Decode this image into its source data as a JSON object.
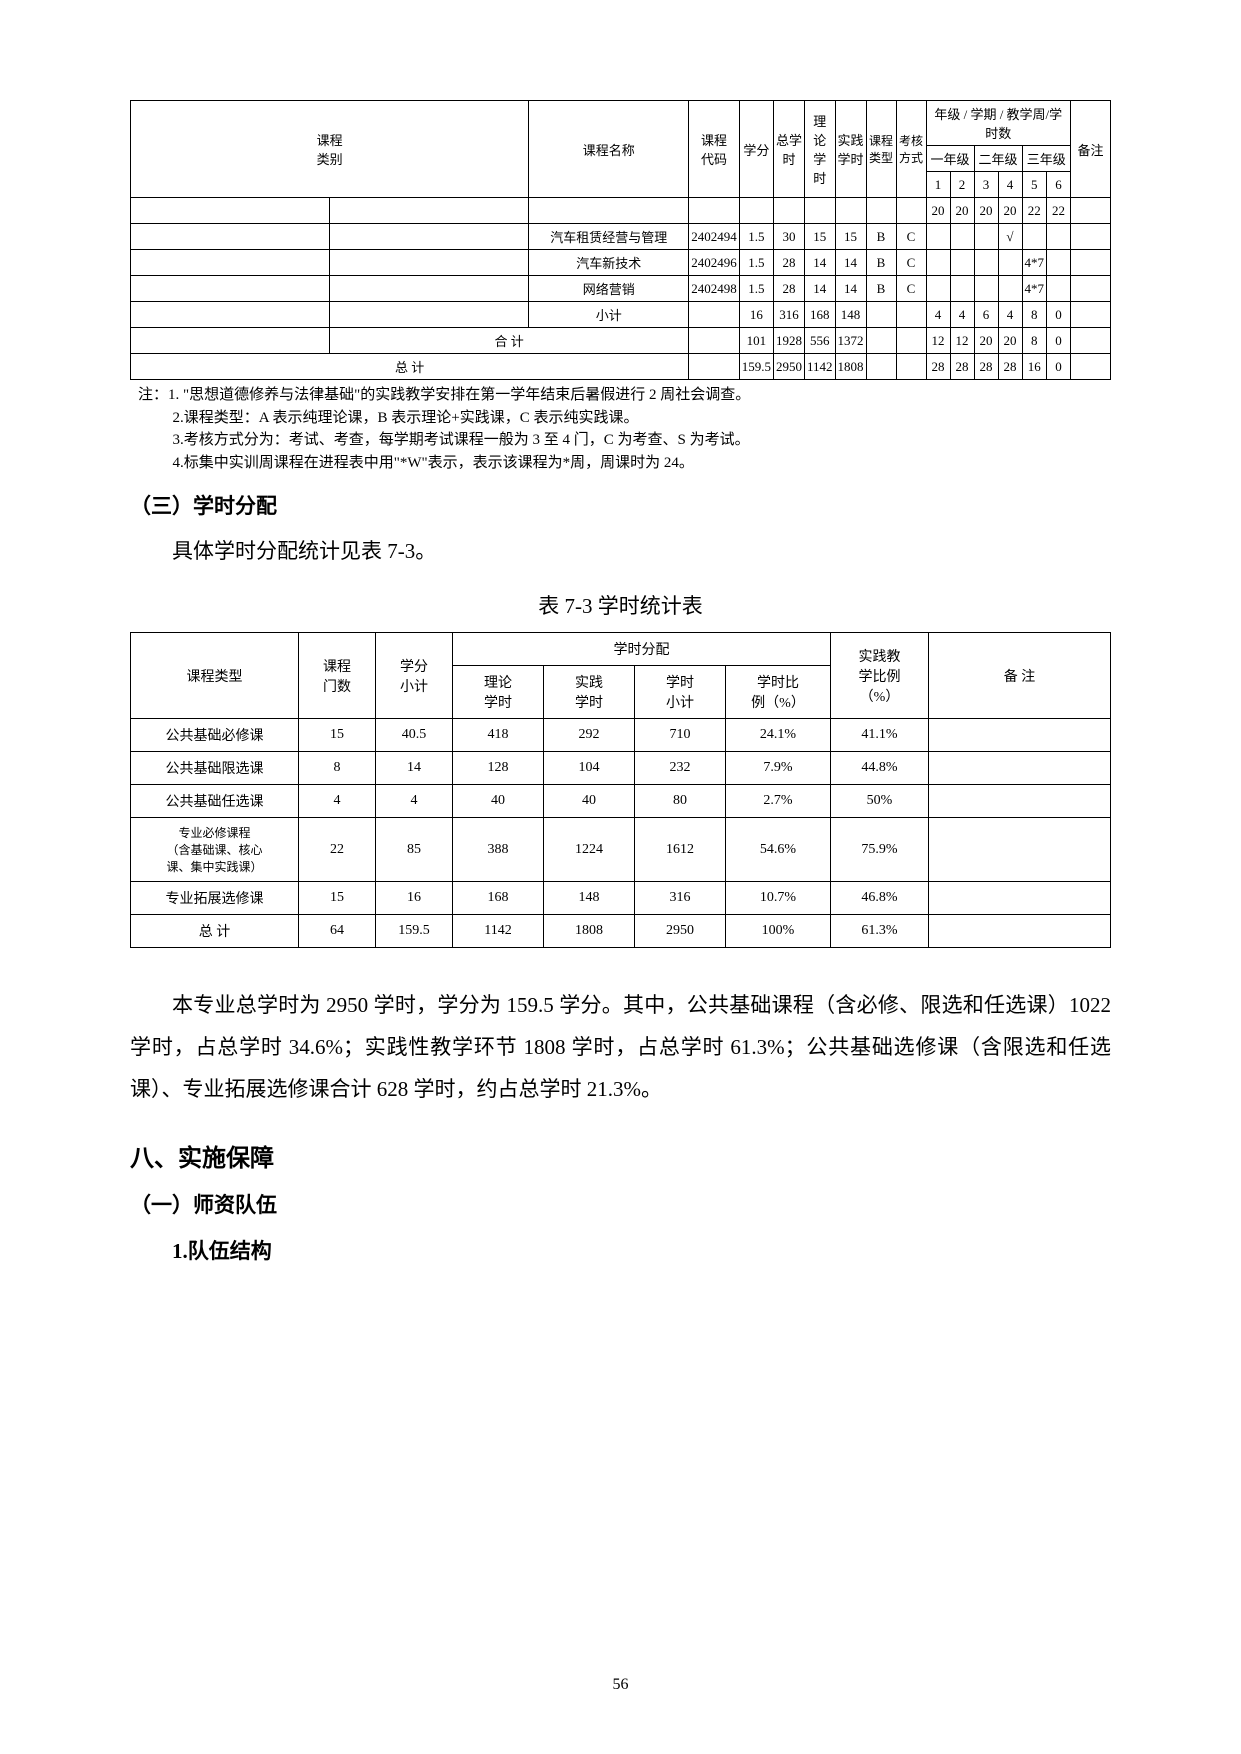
{
  "table1": {
    "header": {
      "col_category": "课程\n类别",
      "col_name": "课程名称",
      "col_code": "课程\n代码",
      "col_credit": "学分",
      "col_total": "总学\n时",
      "col_theory": "理论\n学时",
      "col_practice": "实践\n学时",
      "col_type": "课程\n类型",
      "col_assess": "考核\n方式",
      "col_years": "年级 / 学期 / 教学周/学时数",
      "col_remark": "备注",
      "y1": "一年级",
      "y2": "二年级",
      "y3": "三年级",
      "s1": "1",
      "s2": "2",
      "s3": "3",
      "s4": "4",
      "s5": "5",
      "s6": "6",
      "w1": "20",
      "w2": "20",
      "w3": "20",
      "w4": "20",
      "w5": "22",
      "w6": "22"
    },
    "rows": [
      {
        "name": "汽车租赁经营与管理",
        "code": "2402494",
        "credit": "1.5",
        "total": "30",
        "theory": "15",
        "practice": "15",
        "type": "B",
        "assess": "C",
        "v": [
          "",
          "",
          "",
          "√",
          "",
          ""
        ]
      },
      {
        "name": "汽车新技术",
        "code": "2402496",
        "credit": "1.5",
        "total": "28",
        "theory": "14",
        "practice": "14",
        "type": "B",
        "assess": "C",
        "v": [
          "",
          "",
          "",
          "",
          "4*7",
          ""
        ]
      },
      {
        "name": "网络营销",
        "code": "2402498",
        "credit": "1.5",
        "total": "28",
        "theory": "14",
        "practice": "14",
        "type": "B",
        "assess": "C",
        "v": [
          "",
          "",
          "",
          "",
          "4*7",
          ""
        ]
      }
    ],
    "subtotal": {
      "name": "小计",
      "credit": "16",
      "total": "316",
      "theory": "168",
      "practice": "148",
      "type": "",
      "assess": "",
      "v": [
        "4",
        "4",
        "6",
        "4",
        "8",
        "0"
      ]
    },
    "heji": {
      "name": "合  计",
      "credit": "101",
      "total": "1928",
      "theory": "556",
      "practice": "1372",
      "type": "",
      "assess": "",
      "v": [
        "12",
        "12",
        "20",
        "20",
        "8",
        "0"
      ]
    },
    "zongji": {
      "name": "总  计",
      "credit": "159.5",
      "total": "2950",
      "theory": "1142",
      "practice": "1808",
      "type": "",
      "assess": "",
      "v": [
        "28",
        "28",
        "28",
        "28",
        "16",
        "0"
      ]
    }
  },
  "notes": {
    "n1": "注：1. \"思想道德修养与法律基础\"的实践教学安排在第一学年结束后暑假进行 2 周社会调查。",
    "n2": "2.课程类型：A 表示纯理论课，B 表示理论+实践课，C 表示纯实践课。",
    "n3": "3.考核方式分为：考试、考查，每学期考试课程一般为 3 至 4 门，C 为考查、S 为考试。",
    "n4": "4.标集中实训周课程在进程表中用\"*W\"表示，表示该课程为*周，周课时为 24。"
  },
  "heading_3": "（三）学时分配",
  "intro_line": "具体学时分配统计见表 7-3。",
  "table2_caption": "表 7-3  学时统计表",
  "table2": {
    "h_type": "课程类型",
    "h_courses": "课程\n门数",
    "h_credit": "学分\n小计",
    "h_alloc": "学时分配",
    "h_theory": "理论\n学时",
    "h_practice": "实践\n学时",
    "h_subtotal": "学时\n小计",
    "h_ratio": "学时比\n例（%）",
    "h_pratio": "实践教\n学比例\n（%）",
    "h_remark": "备  注",
    "rows": [
      {
        "t": "公共基础必修课",
        "c": "15",
        "cr": "40.5",
        "th": "418",
        "pr": "292",
        "st": "710",
        "r": "24.1%",
        "pp": "41.1%",
        "rm": ""
      },
      {
        "t": "公共基础限选课",
        "c": "8",
        "cr": "14",
        "th": "128",
        "pr": "104",
        "st": "232",
        "r": "7.9%",
        "pp": "44.8%",
        "rm": ""
      },
      {
        "t": "公共基础任选课",
        "c": "4",
        "cr": "4",
        "th": "40",
        "pr": "40",
        "st": "80",
        "r": "2.7%",
        "pp": "50%",
        "rm": ""
      },
      {
        "t": "专业必修课程\n（含基础课、核心\n课、集中实践课）",
        "c": "22",
        "cr": "85",
        "th": "388",
        "pr": "1224",
        "st": "1612",
        "r": "54.6%",
        "pp": "75.9%",
        "rm": ""
      },
      {
        "t": "专业拓展选修课",
        "c": "15",
        "cr": "16",
        "th": "168",
        "pr": "148",
        "st": "316",
        "r": "10.7%",
        "pp": "46.8%",
        "rm": ""
      },
      {
        "t": "总    计",
        "c": "64",
        "cr": "159.5",
        "th": "1142",
        "pr": "1808",
        "st": "2950",
        "r": "100%",
        "pp": "61.3%",
        "rm": ""
      }
    ]
  },
  "paragraph": "本专业总学时为 2950 学时，学分为 159.5 学分。其中，公共基础课程（含必修、限选和任选课）1022 学时，占总学时 34.6%；实践性教学环节 1808 学时，占总学时 61.3%；公共基础选修课（含限选和任选课）、专业拓展选修课合计 628 学时，约占总学时 21.3%。",
  "h1": "八、实施保障",
  "h2": "（一）师资队伍",
  "h3": "1.队伍结构",
  "page_number": "56"
}
